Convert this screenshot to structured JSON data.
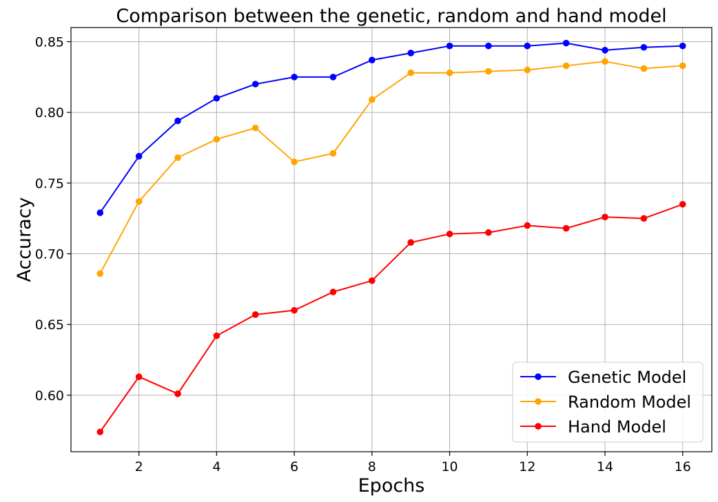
{
  "chart_data": {
    "type": "line",
    "title": "Comparison between the genetic, random and hand model",
    "xlabel": "Epochs",
    "ylabel": "Accuracy",
    "x": [
      1,
      2,
      3,
      4,
      5,
      6,
      7,
      8,
      9,
      10,
      11,
      12,
      13,
      14,
      15,
      16
    ],
    "xticks": [
      2,
      4,
      6,
      8,
      10,
      12,
      14,
      16
    ],
    "xtick_labels": [
      "2",
      "4",
      "6",
      "8",
      "10",
      "12",
      "14",
      "16"
    ],
    "yticks": [
      0.6,
      0.65,
      0.7,
      0.75,
      0.8,
      0.85
    ],
    "ytick_labels": [
      "0.60",
      "0.65",
      "0.70",
      "0.75",
      "0.80",
      "0.85"
    ],
    "xlim": [
      0.25,
      16.75
    ],
    "ylim": [
      0.56,
      0.86
    ],
    "grid": true,
    "legend_position": "bottom-right",
    "series": [
      {
        "name": "Genetic Model",
        "color": "#0000ff",
        "values": [
          0.729,
          0.769,
          0.794,
          0.81,
          0.82,
          0.825,
          0.825,
          0.837,
          0.842,
          0.847,
          0.847,
          0.847,
          0.849,
          0.844,
          0.846,
          0.847
        ]
      },
      {
        "name": "Random Model",
        "color": "#ffa500",
        "values": [
          0.686,
          0.737,
          0.768,
          0.781,
          0.789,
          0.765,
          0.771,
          0.809,
          0.828,
          0.828,
          0.829,
          0.83,
          0.833,
          0.836,
          0.831,
          0.833
        ]
      },
      {
        "name": "Hand Model",
        "color": "#ff0000",
        "values": [
          0.574,
          0.613,
          0.601,
          0.642,
          0.657,
          0.66,
          0.673,
          0.681,
          0.708,
          0.714,
          0.715,
          0.72,
          0.718,
          0.726,
          0.725,
          0.735
        ]
      }
    ]
  }
}
